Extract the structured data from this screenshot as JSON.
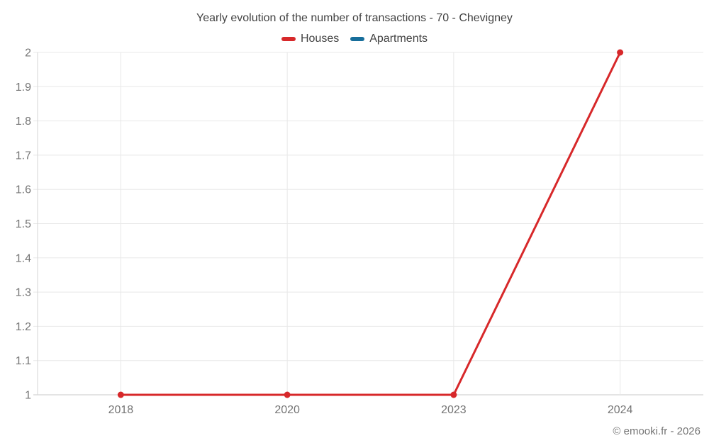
{
  "chart_data": {
    "type": "line",
    "title": "Yearly evolution of the number of transactions - 70 - Chevigney",
    "categories": [
      "2018",
      "2020",
      "2023",
      "2024"
    ],
    "series": [
      {
        "name": "Houses",
        "color": "#d7282a",
        "values": [
          1,
          1,
          1,
          2
        ]
      },
      {
        "name": "Apartments",
        "color": "#176e9b",
        "values": []
      }
    ],
    "xlabel": "",
    "ylabel": "",
    "ylim": [
      1,
      2
    ],
    "ytick_step": 0.1,
    "ytick_labels": [
      "1",
      "1.1",
      "1.2",
      "1.3",
      "1.4",
      "1.5",
      "1.6",
      "1.7",
      "1.8",
      "1.9",
      "2"
    ],
    "grid": true,
    "legend_position": "top",
    "marker": "circle"
  },
  "footer": {
    "copyright": "© emooki.fr - 2026"
  },
  "colors": {
    "houses": "#d7282a",
    "apartments": "#176e9b",
    "gridline": "#e8e8e8",
    "baseline": "#c9c9c9",
    "axis_line": "#d6d6d6",
    "tick_text": "#757575",
    "title_text": "#424242",
    "background": "#ffffff"
  }
}
